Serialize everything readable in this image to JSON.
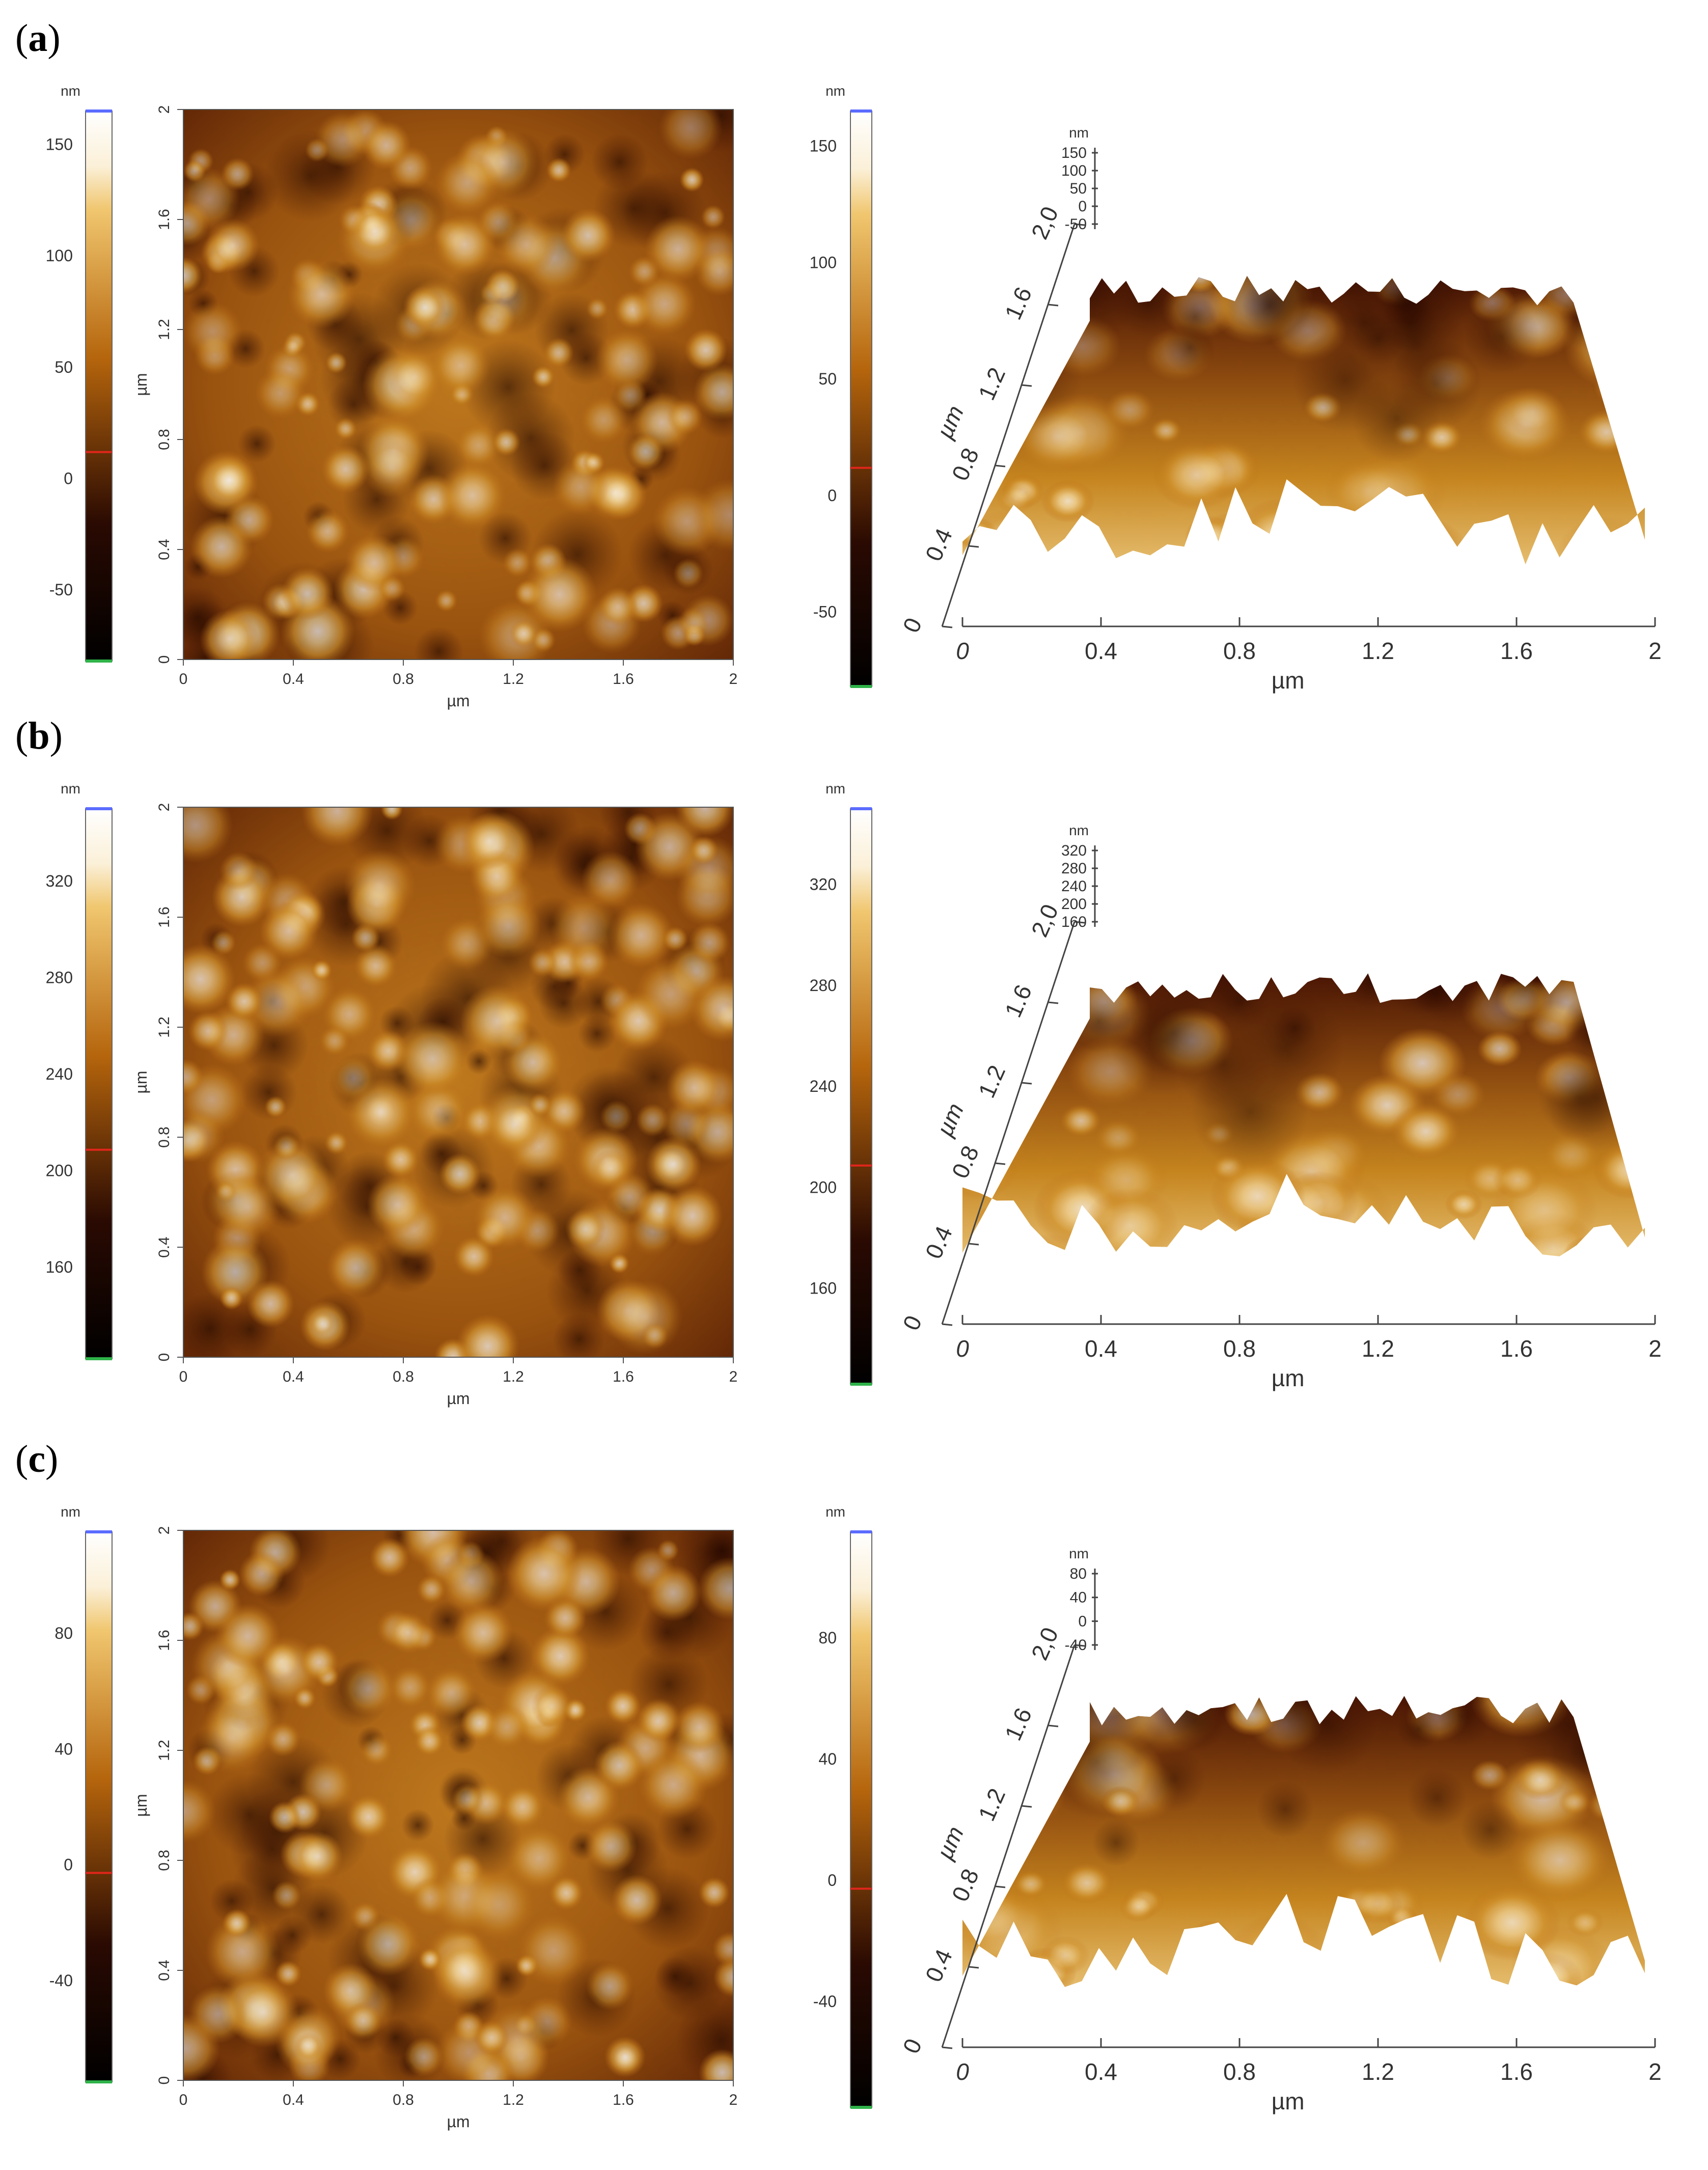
{
  "panels": [
    {
      "label_open": "(",
      "label_letter": "a",
      "label_close": ")",
      "height_unit": "nm",
      "left_cbar_ticks": [
        "150",
        "100",
        "50",
        "0",
        "-50"
      ],
      "left_cbar_values": [
        150,
        100,
        50,
        0,
        -50
      ],
      "left_cbar_range": [
        -82,
        165
      ],
      "right_cbar_ticks": [
        "150",
        "100",
        "50",
        "0",
        "-50"
      ],
      "right_cbar_values": [
        150,
        100,
        50,
        0,
        -50
      ],
      "right_cbar_range": [
        -82,
        165
      ],
      "map_x_ticks": [
        "0",
        "0.4",
        "0.8",
        "1.2",
        "1.6",
        "2"
      ],
      "map_y_ticks": [
        "0",
        "0.4",
        "0.8",
        "1.2",
        "1.6",
        "2"
      ],
      "map_x_label": "µm",
      "map_y_label": "µm",
      "view3d_x_ticks": [
        "0",
        "0.4",
        "0.8",
        "1.2",
        "1.6",
        "2"
      ],
      "view3d_y_ticks": [
        "0",
        "0.4",
        "0.8",
        "1.2",
        "1.6",
        "2,0"
      ],
      "view3d_z_ticks": [
        "150",
        "100",
        "50",
        "0",
        "-50"
      ],
      "view3d_z_unit": "nm",
      "view3d_x_label": "µm",
      "view3d_y_label": "µm"
    },
    {
      "label_open": "(",
      "label_letter": "b",
      "label_close": ")",
      "height_unit": "nm",
      "left_cbar_ticks": [
        "320",
        "280",
        "240",
        "200",
        "160"
      ],
      "left_cbar_values": [
        320,
        280,
        240,
        200,
        160
      ],
      "left_cbar_range": [
        122,
        350
      ],
      "right_cbar_ticks": [
        "320",
        "280",
        "240",
        "200",
        "160"
      ],
      "right_cbar_values": [
        320,
        280,
        240,
        200,
        160
      ],
      "right_cbar_range": [
        122,
        350
      ],
      "map_x_ticks": [
        "0",
        "0.4",
        "0.8",
        "1.2",
        "1.6",
        "2"
      ],
      "map_y_ticks": [
        "0",
        "0.4",
        "0.8",
        "1.2",
        "1.6",
        "2"
      ],
      "map_x_label": "µm",
      "map_y_label": "µm",
      "view3d_x_ticks": [
        "0",
        "0.4",
        "0.8",
        "1.2",
        "1.6",
        "2"
      ],
      "view3d_y_ticks": [
        "0",
        "0.4",
        "0.8",
        "1.2",
        "1.6",
        "2,0"
      ],
      "view3d_z_ticks": [
        "320",
        "280",
        "240",
        "200",
        "160"
      ],
      "view3d_z_unit": "nm",
      "view3d_x_label": "µm",
      "view3d_y_label": "µm"
    },
    {
      "label_open": "(",
      "label_letter": "c",
      "label_close": ")",
      "height_unit": "nm",
      "left_cbar_ticks": [
        "80",
        "40",
        "0",
        "-40"
      ],
      "left_cbar_values": [
        80,
        40,
        0,
        -40
      ],
      "left_cbar_range": [
        -75,
        115
      ],
      "right_cbar_ticks": [
        "80",
        "40",
        "0",
        "-40"
      ],
      "right_cbar_values": [
        80,
        40,
        0,
        -40
      ],
      "right_cbar_range": [
        -75,
        115
      ],
      "map_x_ticks": [
        "0",
        "0.4",
        "0.8",
        "1.2",
        "1.6",
        "2"
      ],
      "map_y_ticks": [
        "0",
        "0.4",
        "0.8",
        "1.2",
        "1.6",
        "2"
      ],
      "map_x_label": "µm",
      "map_y_label": "µm",
      "view3d_x_ticks": [
        "0",
        "0.4",
        "0.8",
        "1.2",
        "1.6",
        "2"
      ],
      "view3d_y_ticks": [
        "0",
        "0.4",
        "0.8",
        "1.2",
        "1.6",
        "2,0"
      ],
      "view3d_z_ticks": [
        "80",
        "40",
        "0",
        "-40"
      ],
      "view3d_z_unit": "nm",
      "view3d_x_label": "µm",
      "view3d_y_label": "µm"
    }
  ],
  "colors": {
    "afm_dark": "#2a0a02",
    "afm_mid": "#b5650c",
    "afm_light": "#f0c66e",
    "afm_white": "#ffffff",
    "marker_top": "#5b6cff",
    "marker_mid": "#e0261b",
    "marker_bottom": "#2fb34a"
  }
}
